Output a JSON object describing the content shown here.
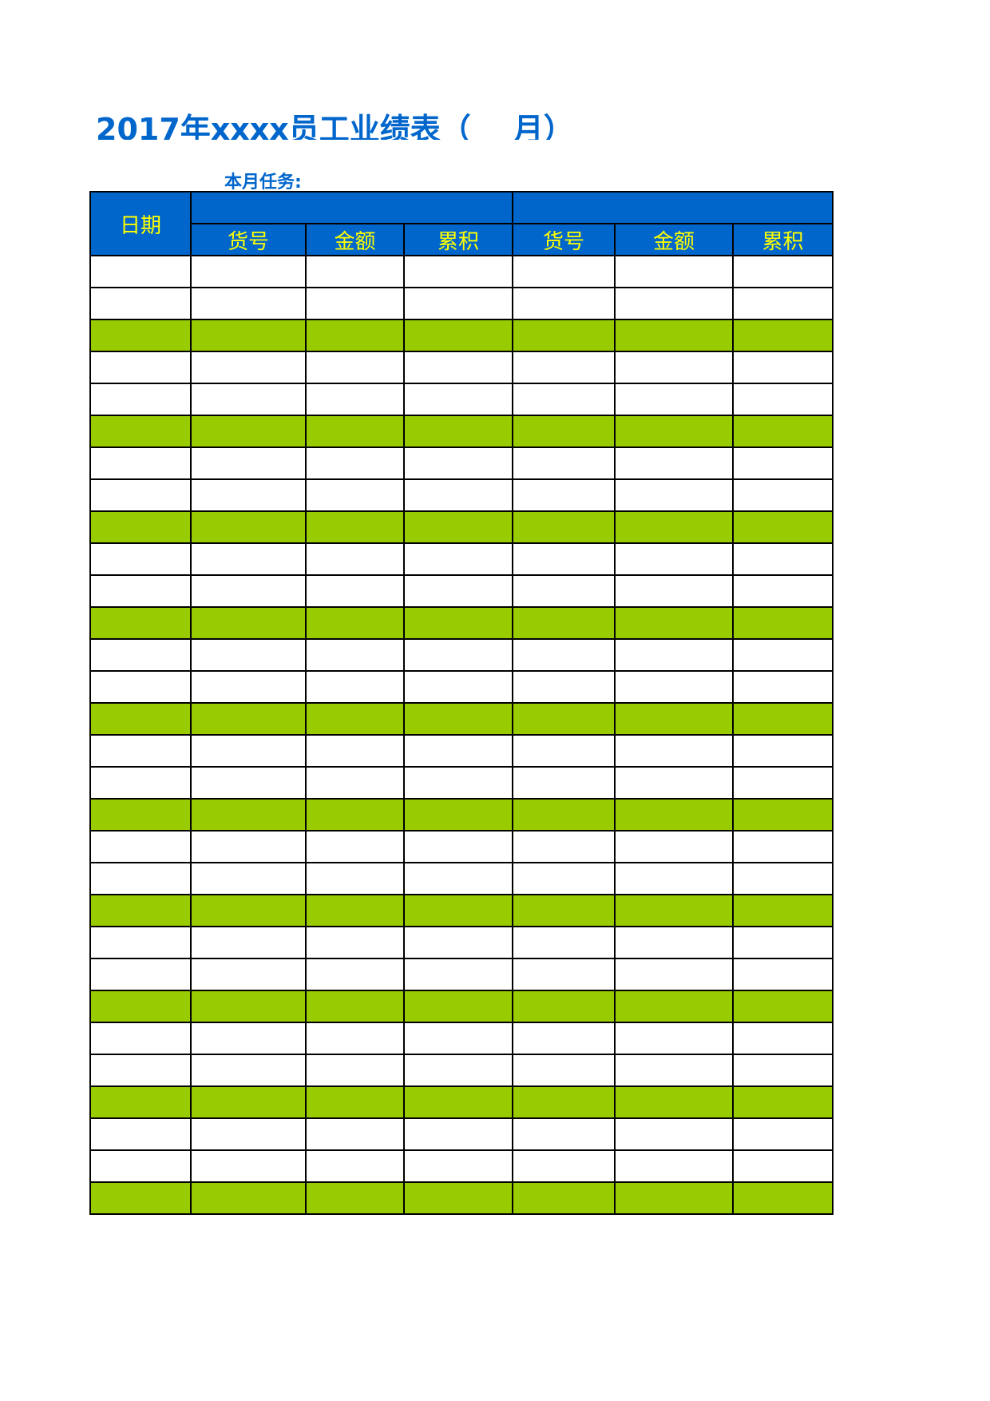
{
  "header": {
    "title": "2017年xxxx员工业绩表（    月）",
    "task_label": "本月任务:"
  },
  "table": {
    "date_header": "日期",
    "sub_headers": [
      "货号",
      "金额",
      "累积",
      "货号",
      "金额",
      "累积"
    ]
  }
}
